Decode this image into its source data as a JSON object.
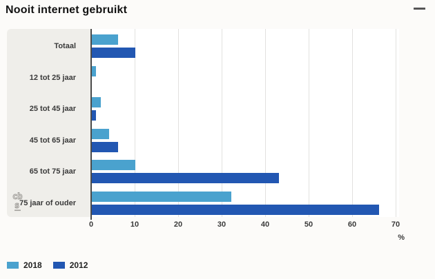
{
  "header": {
    "title": "Nooit internet gebruikt",
    "menu_icon": "hamburger-icon"
  },
  "chart_data": {
    "type": "bar",
    "orientation": "horizontal",
    "title": "Nooit internet gebruikt",
    "categories": [
      "Totaal",
      "12 tot 25 jaar",
      "25 tot 45 jaar",
      "45 tot 65 jaar",
      "65 tot 75 jaar",
      "75 jaar of ouder"
    ],
    "series": [
      {
        "name": "2018",
        "color": "#4aa2ce",
        "values": [
          6,
          1,
          2,
          4,
          10,
          32
        ]
      },
      {
        "name": "2012",
        "color": "#2257b2",
        "values": [
          10,
          0,
          1,
          6,
          43,
          66
        ]
      }
    ],
    "xlabel": "%",
    "xlim": [
      0,
      70
    ],
    "xticks": [
      0,
      10,
      20,
      30,
      40,
      50,
      60,
      70
    ],
    "grid": true,
    "legend_position": "bottom-left"
  },
  "branding": {
    "logo": "cbs-logo"
  },
  "colors": {
    "series_2018": "#4aa2ce",
    "series_2012": "#2257b2",
    "panel_background": "#efeeea",
    "plot_background": "#ffffff",
    "axis_line": "#4a4a4a",
    "gridline": "#e2e1df",
    "text": "#3a3a3a"
  }
}
